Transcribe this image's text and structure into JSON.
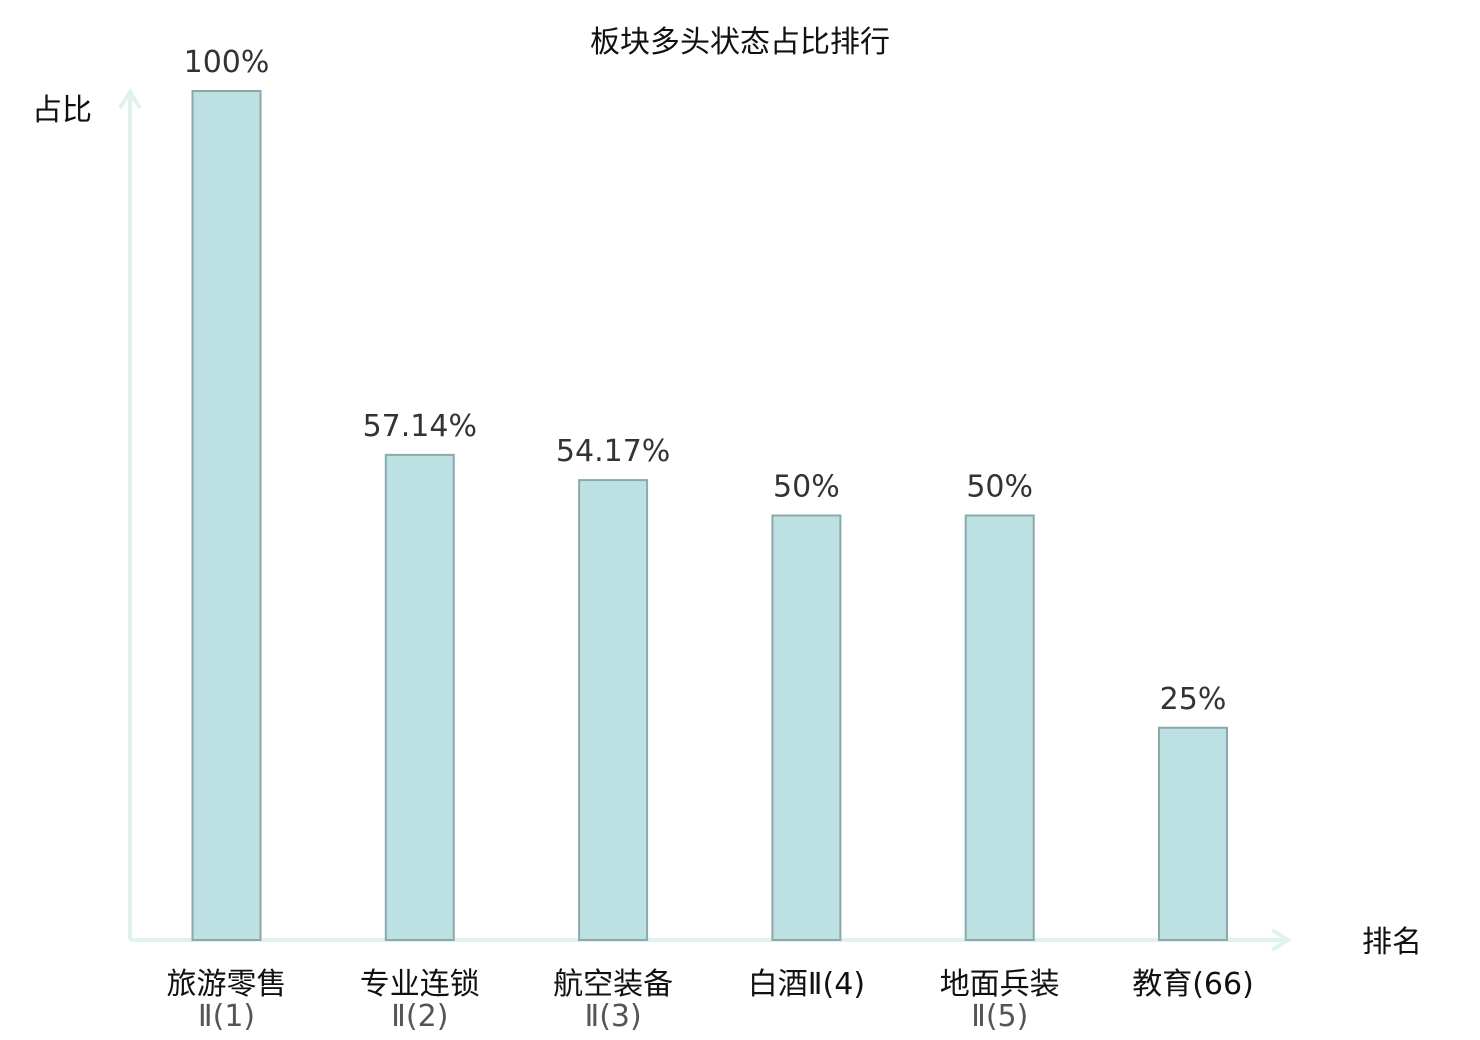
{
  "chart_data": {
    "type": "bar",
    "title": "板块多头状态占比排行",
    "ylabel": "占比",
    "xlabel": "排名",
    "ylim": [
      0,
      100
    ],
    "grid": false,
    "categories": [
      {
        "line1": "旅游零售",
        "line2": "Ⅱ(1)",
        "highlight": false
      },
      {
        "line1": "专业连锁",
        "line2": "Ⅱ(2)",
        "highlight": false
      },
      {
        "line1": "航空装备",
        "line2": "Ⅱ(3)",
        "highlight": false
      },
      {
        "line1": "白酒Ⅱ(4)",
        "line2": "",
        "highlight": false
      },
      {
        "line1": "地面兵装",
        "line2": "Ⅱ(5)",
        "highlight": false
      },
      {
        "line1": "教育(66)",
        "line2": "",
        "highlight": true
      }
    ],
    "values": [
      100,
      57.14,
      54.17,
      50,
      50,
      25
    ],
    "value_labels": [
      "100%",
      "57.14%",
      "54.17%",
      "50%",
      "50%",
      "25%"
    ],
    "colors": {
      "bar_fill": "#bde0e3",
      "bar_stroke": "#8aa9ac",
      "axis": "#dff2ef",
      "highlight_text": "#e0161b",
      "text": "#111111",
      "value_text": "#333333"
    }
  }
}
